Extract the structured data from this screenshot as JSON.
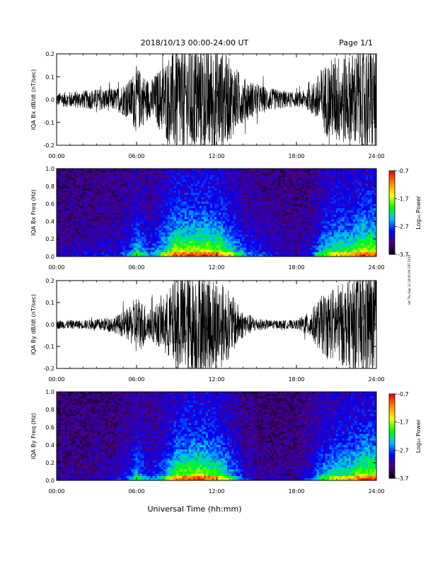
{
  "header": {
    "title": "2018/10/13   00:00-24:00 UT",
    "page": "Page 1/1"
  },
  "footer": {
    "xlabel": "Universal Time (hh:mm)"
  },
  "side_note": "sdt Thu Sep 12 18:00:09 CDT 2019",
  "colorbar": {
    "label": "Log₁₀ Power",
    "ticks": [
      "-0.7",
      "-1.7",
      "-2.7",
      "-3.7"
    ],
    "range": [
      -3.7,
      -0.7
    ],
    "colormap": [
      "#000000",
      "#4b0082",
      "#0000ff",
      "#00bfff",
      "#00ff00",
      "#ffff00",
      "#ff8c00",
      "#ff0000"
    ]
  },
  "xaxis": {
    "ticks": [
      "00:00",
      "06:00",
      "12:00",
      "18:00",
      "24:00"
    ],
    "range_hours": [
      0,
      24
    ]
  },
  "chart_data": [
    {
      "type": "line",
      "ylabel": "IQA Bx dB/dt (nT/sec)",
      "ylim": [
        -0.2,
        0.2
      ],
      "yticks": [
        "0.2",
        "0.1",
        "0.0",
        "-0.1",
        "-0.2"
      ],
      "xlim_hours": [
        0,
        24
      ],
      "envelope": {
        "hours": [
          0,
          2,
          3.5,
          4.5,
          5.5,
          6,
          7,
          8,
          9,
          10,
          11,
          12,
          13,
          14,
          15,
          16,
          17,
          18,
          19,
          20,
          21,
          22,
          23,
          24
        ],
        "amplitude": [
          0.03,
          0.04,
          0.05,
          0.05,
          0.09,
          0.15,
          0.08,
          0.16,
          0.25,
          0.25,
          0.25,
          0.25,
          0.18,
          0.1,
          0.07,
          0.05,
          0.04,
          0.03,
          0.05,
          0.15,
          0.2,
          0.2,
          0.25,
          0.25
        ]
      }
    },
    {
      "type": "heatmap",
      "ylabel": "IQA Bx Freq (Hz)",
      "ylim": [
        0.0,
        1.0
      ],
      "yticks": [
        "1.0",
        "0.8",
        "0.6",
        "0.4",
        "0.2",
        "0.0"
      ],
      "xlim_hours": [
        0,
        24
      ],
      "zlim": [
        -3.7,
        -0.7
      ]
    },
    {
      "type": "line",
      "ylabel": "IQA By dB/dt (nT/sec)",
      "ylim": [
        -0.2,
        0.2
      ],
      "yticks": [
        "0.2",
        "0.1",
        "0.0",
        "-0.1",
        "-0.2"
      ],
      "xlim_hours": [
        0,
        24
      ],
      "envelope": {
        "hours": [
          0,
          2,
          3.5,
          4.5,
          5.5,
          6,
          7,
          8,
          9,
          10,
          11,
          12,
          13,
          14,
          15,
          16,
          17,
          18,
          19,
          20,
          21,
          22,
          23,
          24
        ],
        "amplitude": [
          0.02,
          0.02,
          0.03,
          0.04,
          0.08,
          0.14,
          0.07,
          0.12,
          0.22,
          0.25,
          0.25,
          0.22,
          0.15,
          0.06,
          0.03,
          0.02,
          0.02,
          0.02,
          0.06,
          0.14,
          0.18,
          0.2,
          0.25,
          0.25
        ]
      }
    },
    {
      "type": "heatmap",
      "ylabel": "IQA By Freq (Hz)",
      "ylim": [
        0.0,
        1.0
      ],
      "yticks": [
        "1.0",
        "0.8",
        "0.6",
        "0.4",
        "0.2",
        "0.0"
      ],
      "xlim_hours": [
        0,
        24
      ],
      "zlim": [
        -3.7,
        -0.7
      ]
    }
  ]
}
